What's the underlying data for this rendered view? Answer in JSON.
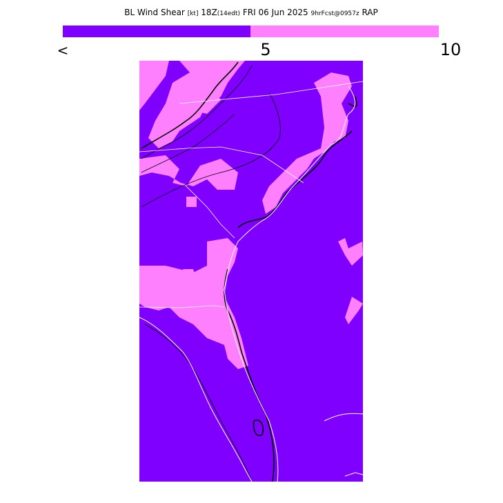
{
  "title": {
    "parameter": "BL Wind Shear",
    "units": "[kt]",
    "time": "18Z",
    "local_time": "(14edt)",
    "date": "FRI 06 Jun 2025",
    "forecast": "9hrFcst@0957z",
    "model": "RAP"
  },
  "legend": {
    "labels": [
      "<",
      "5",
      "10"
    ]
  }
}
